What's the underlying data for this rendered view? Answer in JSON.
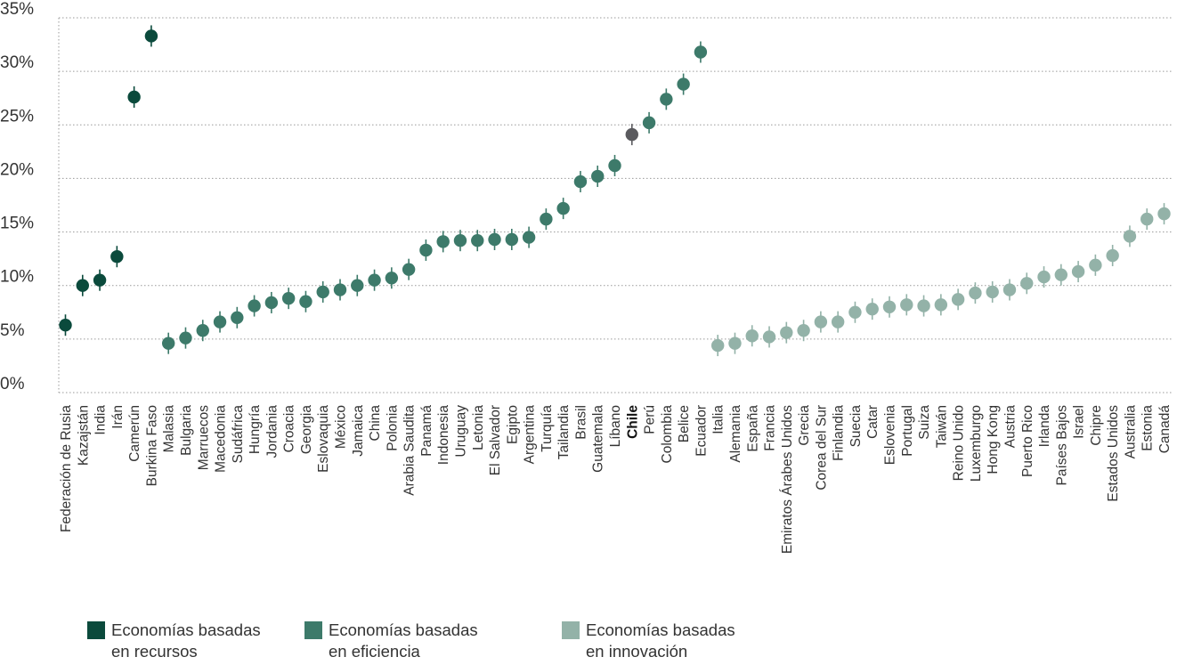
{
  "chart_data": {
    "type": "scatter",
    "ylim": [
      0,
      35
    ],
    "y_ticks": [
      "0%",
      "5%",
      "10%",
      "15%",
      "20%",
      "25%",
      "30%",
      "35%"
    ],
    "grid": true,
    "highlight": "Chile",
    "colors": {
      "recursos": "#0b4a3c",
      "eficiencia": "#3d7a6a",
      "innovacion": "#93b2a8",
      "highlight": "#5a5a5e"
    },
    "legend": [
      {
        "key": "recursos",
        "label": "Economías basadas\nen recursos"
      },
      {
        "key": "eficiencia",
        "label": "Economías basadas\nen eficiencia"
      },
      {
        "key": "innovacion",
        "label": "Economías basadas\nen innovación"
      }
    ],
    "points": [
      {
        "name": "Federación de Rusia",
        "value": 6.3,
        "group": "recursos"
      },
      {
        "name": "Kazajstán",
        "value": 10.0,
        "group": "recursos"
      },
      {
        "name": "India",
        "value": 10.5,
        "group": "recursos"
      },
      {
        "name": "Irán",
        "value": 12.7,
        "group": "recursos"
      },
      {
        "name": "Camerún",
        "value": 27.6,
        "group": "recursos"
      },
      {
        "name": "Burkina Faso",
        "value": 33.3,
        "group": "recursos"
      },
      {
        "name": "Malasia",
        "value": 4.6,
        "group": "eficiencia"
      },
      {
        "name": "Bulgaria",
        "value": 5.1,
        "group": "eficiencia"
      },
      {
        "name": "Marruecos",
        "value": 5.8,
        "group": "eficiencia"
      },
      {
        "name": "Macedonia",
        "value": 6.6,
        "group": "eficiencia"
      },
      {
        "name": "Sudáfrica",
        "value": 7.0,
        "group": "eficiencia"
      },
      {
        "name": "Hungría",
        "value": 8.1,
        "group": "eficiencia"
      },
      {
        "name": "Jordania",
        "value": 8.4,
        "group": "eficiencia"
      },
      {
        "name": "Croacia",
        "value": 8.8,
        "group": "eficiencia"
      },
      {
        "name": "Georgia",
        "value": 8.5,
        "group": "eficiencia"
      },
      {
        "name": "Eslovaquia",
        "value": 9.4,
        "group": "eficiencia"
      },
      {
        "name": "México",
        "value": 9.6,
        "group": "eficiencia"
      },
      {
        "name": "Jamaica",
        "value": 10.0,
        "group": "eficiencia"
      },
      {
        "name": "China",
        "value": 10.5,
        "group": "eficiencia"
      },
      {
        "name": "Polonia",
        "value": 10.7,
        "group": "eficiencia"
      },
      {
        "name": "Arabia Saudita",
        "value": 11.5,
        "group": "eficiencia"
      },
      {
        "name": "Panamá",
        "value": 13.3,
        "group": "eficiencia"
      },
      {
        "name": "Indonesia",
        "value": 14.1,
        "group": "eficiencia"
      },
      {
        "name": "Uruguay",
        "value": 14.2,
        "group": "eficiencia"
      },
      {
        "name": "Letonia",
        "value": 14.2,
        "group": "eficiencia"
      },
      {
        "name": "El Salvador",
        "value": 14.3,
        "group": "eficiencia"
      },
      {
        "name": "Egipto",
        "value": 14.3,
        "group": "eficiencia"
      },
      {
        "name": "Argentina",
        "value": 14.5,
        "group": "eficiencia"
      },
      {
        "name": "Turquía",
        "value": 16.2,
        "group": "eficiencia"
      },
      {
        "name": "Tailandia",
        "value": 17.2,
        "group": "eficiencia"
      },
      {
        "name": "Brasil",
        "value": 19.7,
        "group": "eficiencia"
      },
      {
        "name": "Guatemala",
        "value": 20.2,
        "group": "eficiencia"
      },
      {
        "name": "Líbano",
        "value": 21.2,
        "group": "eficiencia"
      },
      {
        "name": "Chile",
        "value": 24.1,
        "group": "eficiencia"
      },
      {
        "name": "Perú",
        "value": 25.2,
        "group": "eficiencia"
      },
      {
        "name": "Colombia",
        "value": 27.4,
        "group": "eficiencia"
      },
      {
        "name": "Belice",
        "value": 28.8,
        "group": "eficiencia"
      },
      {
        "name": "Ecuador",
        "value": 31.8,
        "group": "eficiencia"
      },
      {
        "name": "Italia",
        "value": 4.4,
        "group": "innovacion"
      },
      {
        "name": "Alemania",
        "value": 4.6,
        "group": "innovacion"
      },
      {
        "name": "España",
        "value": 5.3,
        "group": "innovacion"
      },
      {
        "name": "Francia",
        "value": 5.2,
        "group": "innovacion"
      },
      {
        "name": "Emiratos Árabes Unidos",
        "value": 5.6,
        "group": "innovacion"
      },
      {
        "name": "Grecia",
        "value": 5.8,
        "group": "innovacion"
      },
      {
        "name": "Corea del Sur",
        "value": 6.6,
        "group": "innovacion"
      },
      {
        "name": "Finlandia",
        "value": 6.6,
        "group": "innovacion"
      },
      {
        "name": "Suecia",
        "value": 7.5,
        "group": "innovacion"
      },
      {
        "name": "Catar",
        "value": 7.8,
        "group": "innovacion"
      },
      {
        "name": "Eslovenia",
        "value": 8.0,
        "group": "innovacion"
      },
      {
        "name": "Portugal",
        "value": 8.2,
        "group": "innovacion"
      },
      {
        "name": "Suiza",
        "value": 8.1,
        "group": "innovacion"
      },
      {
        "name": "Taiwán",
        "value": 8.2,
        "group": "innovacion"
      },
      {
        "name": "Reino Unido",
        "value": 8.7,
        "group": "innovacion"
      },
      {
        "name": "Luxemburgo",
        "value": 9.3,
        "group": "innovacion"
      },
      {
        "name": "Hong Kong",
        "value": 9.4,
        "group": "innovacion"
      },
      {
        "name": "Austria",
        "value": 9.6,
        "group": "innovacion"
      },
      {
        "name": "Puerto Rico",
        "value": 10.2,
        "group": "innovacion"
      },
      {
        "name": "Irlanda",
        "value": 10.8,
        "group": "innovacion"
      },
      {
        "name": "Países Bajos",
        "value": 11.0,
        "group": "innovacion"
      },
      {
        "name": "Israel",
        "value": 11.3,
        "group": "innovacion"
      },
      {
        "name": "Chipre",
        "value": 11.9,
        "group": "innovacion"
      },
      {
        "name": "Estados Unidos",
        "value": 12.8,
        "group": "innovacion"
      },
      {
        "name": "Australia",
        "value": 14.6,
        "group": "innovacion"
      },
      {
        "name": "Estonia",
        "value": 16.2,
        "group": "innovacion"
      },
      {
        "name": "Canadá",
        "value": 16.7,
        "group": "innovacion"
      }
    ]
  }
}
